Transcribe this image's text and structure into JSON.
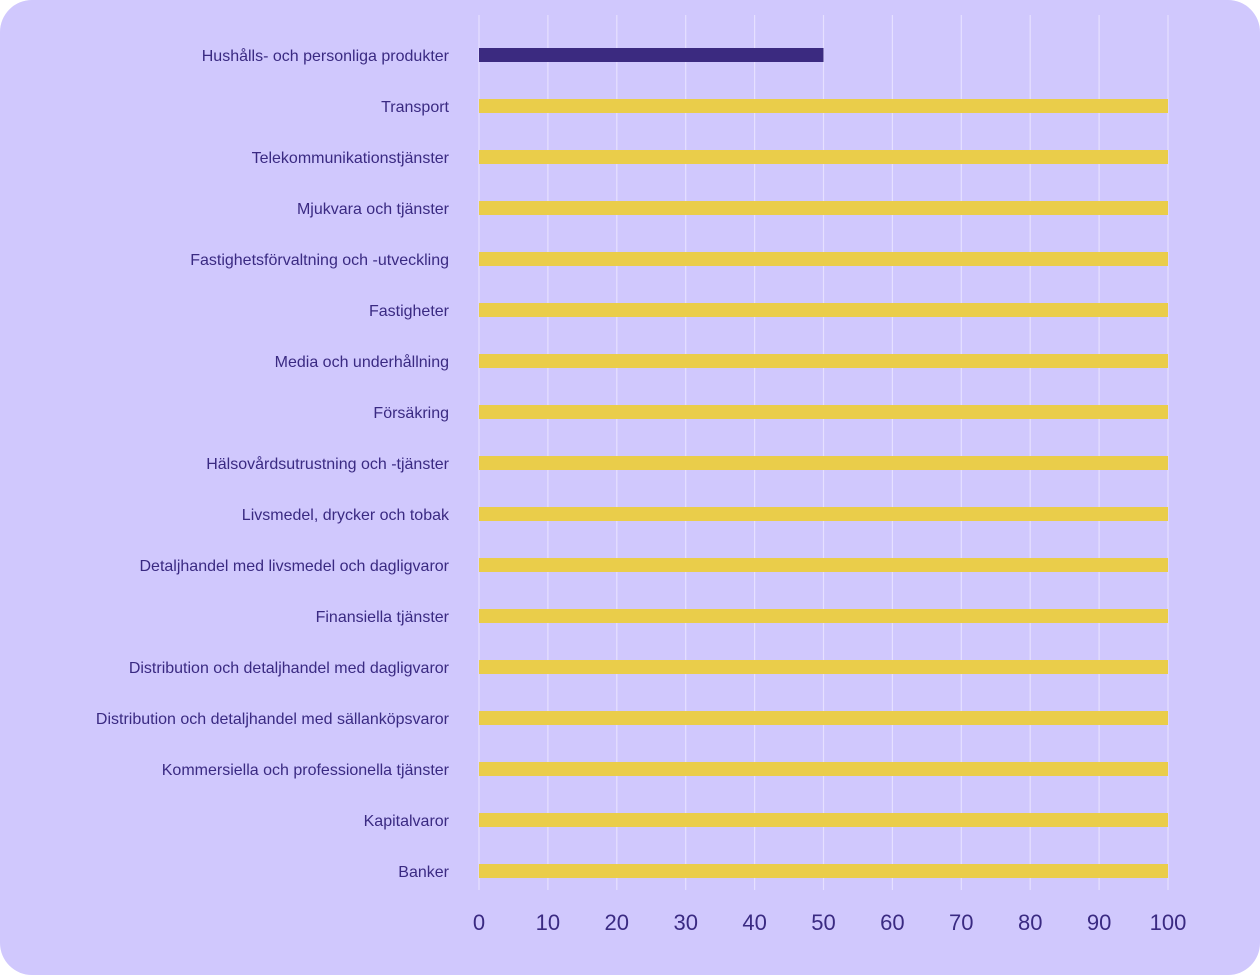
{
  "chart_data": {
    "type": "bar",
    "orientation": "horizontal",
    "title": "",
    "xlabel": "",
    "ylabel": "",
    "xlim": [
      0,
      100
    ],
    "grid": true,
    "x_ticks": [
      "0",
      "10",
      "20",
      "30",
      "40",
      "50",
      "60",
      "70",
      "80",
      "90",
      "100"
    ],
    "categories": [
      "Hushålls- och personliga produkter",
      "Transport",
      "Telekommunikationstjänster",
      "Mjukvara och tjänster",
      "Fastighetsförvaltning och -utveckling",
      "Fastigheter",
      "Media och underhållning",
      "Försäkring",
      "Hälsovårdsutrustning och -tjänster",
      "Livsmedel, drycker och tobak",
      "Detaljhandel med livsmedel och dagligvaror",
      "Finansiella tjänster",
      "Distribution och detaljhandel med dagligvaror",
      "Distribution och detaljhandel med sällanköpsvaror",
      "Kommersiella och professionella tjänster",
      "Kapitalvaror",
      "Banker"
    ],
    "values": [
      50,
      100,
      100,
      100,
      100,
      100,
      100,
      100,
      100,
      100,
      100,
      100,
      100,
      100,
      100,
      100,
      100
    ],
    "highlight_index": 0,
    "colors": {
      "highlight": "#3b2a80",
      "default": "#eacd4a",
      "grid": "#e6e0ff",
      "text": "#3a2a82",
      "background": "#d0c8fd"
    }
  }
}
